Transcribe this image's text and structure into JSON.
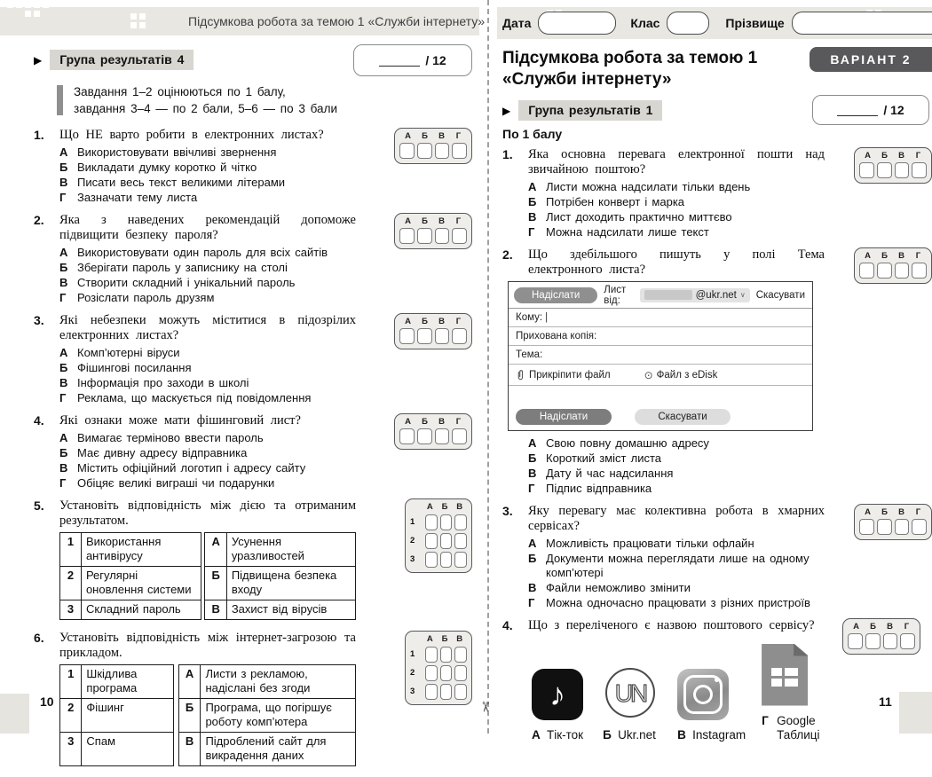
{
  "answer_grid": {
    "letters4": [
      "А",
      "Б",
      "В",
      "Г"
    ],
    "letters3": [
      "А",
      "Б",
      "В"
    ],
    "row_numbers": [
      "1",
      "2",
      "3"
    ]
  },
  "glyphs": {
    "group_marker": "▶",
    "music_note": "♪",
    "ukrnet_logo": "UN",
    "edisk": "⊙",
    "chevron_down": "∨",
    "caret": "|",
    "scissors": "✂"
  },
  "colors": {
    "band": "#e8e7e2",
    "label_bg": "#d7d6d1",
    "grid_bg": "#eeede9",
    "grid_border": "#57585c",
    "variant_badge": "#59595b",
    "send_button": "#8f8f8f",
    "footer_send": "#7d7d7d",
    "footer_cancel": "#dddddd"
  },
  "left_page": {
    "header_title": "Підсумкова робота за темою 1 «Служби інтернету»",
    "group_label": "Група результатів 4",
    "score_total": "/ 12",
    "instructions_line1": "Завдання 1–2 оцінюються по 1 балу,",
    "instructions_line2": "завдання 3–4 — по 2 бали, 5–6 — по 3 бали",
    "page_number": "10",
    "questions": [
      {
        "num": "1.",
        "stem": "Що НЕ варто робити в електронних листах?",
        "options": [
          {
            "letter": "А",
            "text": "Використовувати ввічливі звернення"
          },
          {
            "letter": "Б",
            "text": "Викладати думку коротко й чітко"
          },
          {
            "letter": "В",
            "text": "Писати весь текст великими літерами"
          },
          {
            "letter": "Г",
            "text": "Зазначати тему листа"
          }
        ]
      },
      {
        "num": "2.",
        "stem": "Яка з наведених рекомендацій допоможе підвищити безпеку пароля?",
        "options": [
          {
            "letter": "А",
            "text": "Використовувати один пароль для всіх сайтів"
          },
          {
            "letter": "Б",
            "text": "Зберігати пароль у записнику на столі"
          },
          {
            "letter": "В",
            "text": "Створити складний і унікальний пароль"
          },
          {
            "letter": "Г",
            "text": "Розіслати пароль друзям"
          }
        ]
      },
      {
        "num": "3.",
        "stem": "Які небезпеки можуть міститися в підозрілих електронних листах?",
        "options": [
          {
            "letter": "А",
            "text": "Комп’ютерні віруси"
          },
          {
            "letter": "Б",
            "text": "Фішингові посилання"
          },
          {
            "letter": "В",
            "text": "Інформація про заходи в школі"
          },
          {
            "letter": "Г",
            "text": "Реклама, що маскується під повідомлення"
          }
        ]
      },
      {
        "num": "4.",
        "stem": "Які ознаки може мати фішинговий лист?",
        "options": [
          {
            "letter": "А",
            "text": "Вимагає терміново ввести пароль"
          },
          {
            "letter": "Б",
            "text": "Має дивну адресу відправника"
          },
          {
            "letter": "В",
            "text": "Містить офіційний логотип і адресу сайту"
          },
          {
            "letter": "Г",
            "text": "Обіцяє великі виграші чи подарунки"
          }
        ]
      },
      {
        "num": "5.",
        "stem": "Установіть відповідність між дією та отриманим результатом.",
        "match": [
          {
            "n": "1",
            "left": "Використання антивірусу",
            "l": "А",
            "right": "Усунення уразливостей"
          },
          {
            "n": "2",
            "left": "Регулярні оновлення системи",
            "l": "Б",
            "right": "Підвищена безпека входу"
          },
          {
            "n": "3",
            "left": "Складний пароль",
            "l": "В",
            "right": "Захист від вірусів"
          }
        ]
      },
      {
        "num": "6.",
        "stem": "Установіть відповідність між інтернет-загрозою та прикладом.",
        "match": [
          {
            "n": "1",
            "left": "Шкідлива програма",
            "l": "А",
            "right": "Листи з рекламою, надіслані без згоди"
          },
          {
            "n": "2",
            "left": "Фішинг",
            "l": "Б",
            "right": "Програма, що погіршує роботу комп’ютера"
          },
          {
            "n": "3",
            "left": "Спам",
            "l": "В",
            "right": "Підроблений сайт для викрадення даних"
          }
        ]
      }
    ]
  },
  "right_page": {
    "field_date_label": "Дата",
    "field_class_label": "Клас",
    "field_surname_label": "Прізвище",
    "title_line1": "Підсумкова робота за темою 1",
    "title_line2": "«Служби інтернету»",
    "variant_badge": "ВАРІАНТ 2",
    "group_label": "Група результатів 1",
    "score_total": "/ 12",
    "points_label": "По 1 балу",
    "page_number": "11",
    "questions": [
      {
        "num": "1.",
        "stem": "Яка основна перевага електронної пошти над звичайною поштою?",
        "options": [
          {
            "letter": "А",
            "text": "Листи можна надсилати тільки вдень"
          },
          {
            "letter": "Б",
            "text": "Потрібен конверт і марка"
          },
          {
            "letter": "В",
            "text": "Лист доходить практично миттєво"
          },
          {
            "letter": "Г",
            "text": "Можна надсилати лише текст"
          }
        ]
      },
      {
        "num": "2.",
        "stem": "Що здебільшого пишуть у полі Тема електронного листа?",
        "options": [
          {
            "letter": "А",
            "text": "Свою повну домашню адресу"
          },
          {
            "letter": "Б",
            "text": "Короткий зміст листа"
          },
          {
            "letter": "В",
            "text": "Дату й час надсилання"
          },
          {
            "letter": "Г",
            "text": "Підпис відправника"
          }
        ]
      },
      {
        "num": "3.",
        "stem": "Яку перевагу має колективна робота в хмарних сервісах?",
        "options": [
          {
            "letter": "А",
            "text": "Можливість працювати тільки офлайн"
          },
          {
            "letter": "Б",
            "text": "Документи можна переглядати лише на одному комп’ютері"
          },
          {
            "letter": "В",
            "text": "Файли неможливо змінити"
          },
          {
            "letter": "Г",
            "text": "Можна одночасно працювати з різних пристроїв"
          }
        ]
      },
      {
        "num": "4.",
        "stem": "Що з переліченого є назвою поштового сервісу?",
        "icon_options": [
          {
            "letter": "А",
            "text": "Тік-ток",
            "icon": "tiktok-icon"
          },
          {
            "letter": "Б",
            "text": "Ukr.net",
            "icon": "ukrnet-icon"
          },
          {
            "letter": "В",
            "text": "Instagram",
            "icon": "instagram-icon"
          },
          {
            "letter": "Г",
            "text": "Google Таблиці",
            "icon": "google-sheets-icon"
          }
        ]
      }
    ],
    "email_form": {
      "send_button": "Надіслати",
      "from_label": "Лист від:",
      "from_domain": "@ukr.net",
      "cancel_link": "Скасувати",
      "to_label": "Кому:",
      "bcc_label": "Прихована копія:",
      "subject_label": "Тема:",
      "attach_label": "Прикріпити файл",
      "edisk_label": "Файл з eDisk",
      "footer_send": "Надіслати",
      "footer_cancel": "Скасувати"
    }
  }
}
